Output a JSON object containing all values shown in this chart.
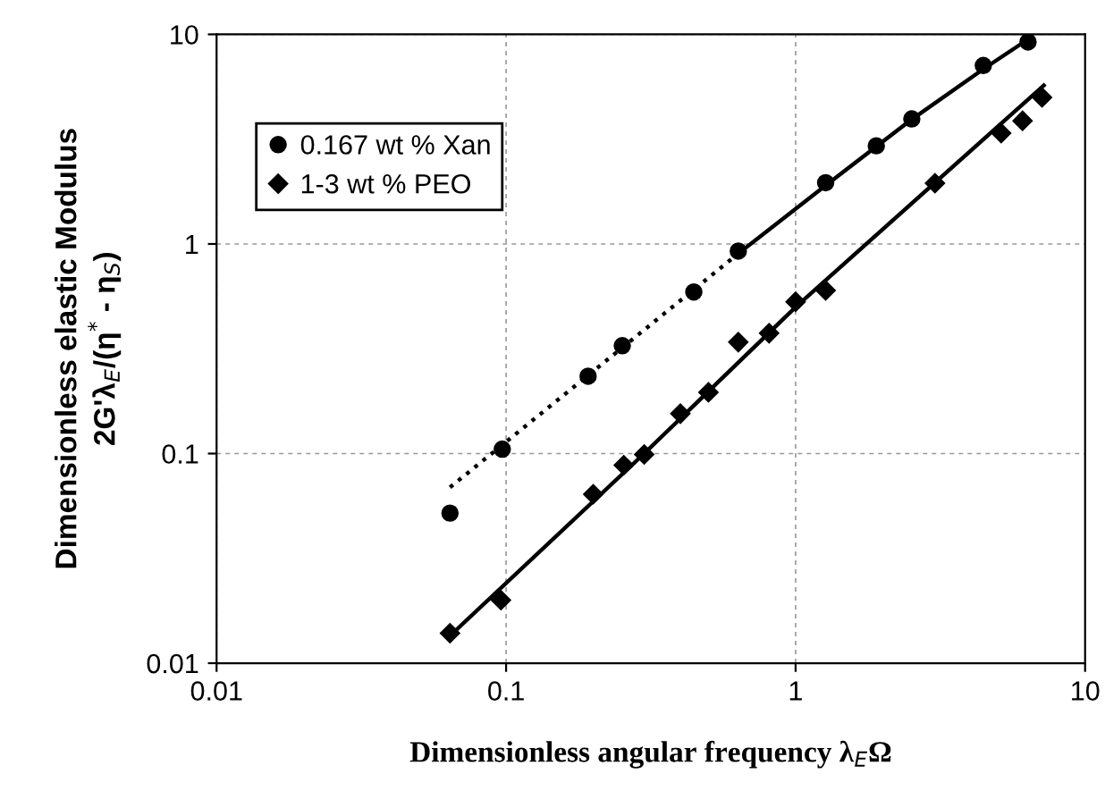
{
  "chart_data": {
    "type": "scatter",
    "xlabel": "Dimensionless angular frequency λ$_{E}$Ω",
    "ylabel": "Dimensionless elastic Modulus\n2G'λ$_{E}$/(η$^{*}$ - η$_{S}$)",
    "log": "xy",
    "xlim": [
      0.01,
      10
    ],
    "ylim": [
      0.01,
      10
    ],
    "xticks": [
      0.01,
      0.1,
      1,
      10
    ],
    "yticks": [
      0.01,
      0.1,
      1,
      10
    ],
    "grid": true,
    "legend": "top left",
    "series": [
      {
        "name": "0.167 wt % Xan",
        "color": "#000000",
        "marker": "circle",
        "x": [
          0.064,
          0.097,
          0.192,
          0.252,
          0.445,
          0.634,
          1.27,
          1.9,
          2.52,
          4.45,
          6.35
        ],
        "values": [
          0.052,
          0.105,
          0.234,
          0.327,
          0.59,
          0.925,
          1.96,
          2.94,
          3.95,
          7.1,
          9.2
        ]
      },
      {
        "name": "1-3 wt % PEO",
        "color": "#000000",
        "marker": "diamond",
        "x": [
          0.064,
          0.096,
          0.2,
          0.255,
          0.3,
          0.4,
          0.5,
          0.634,
          0.81,
          1.0,
          1.27,
          3.03,
          5.13,
          6.08,
          7.1
        ],
        "values": [
          0.0139,
          0.02,
          0.064,
          0.088,
          0.099,
          0.155,
          0.196,
          0.34,
          0.375,
          0.53,
          0.6,
          1.95,
          3.38,
          3.87,
          5.0
        ]
      },
      {
        "type": "line",
        "color": "#000000",
        "line_style": "dotted",
        "x": [
          0.064,
          0.634
        ],
        "values": [
          0.069,
          0.9
        ]
      },
      {
        "type": "line",
        "color": "#000000",
        "line_style": "solid",
        "x": [
          0.634,
          1.27,
          2.5,
          4.5,
          6.3
        ],
        "values": [
          0.9,
          1.9,
          3.9,
          6.9,
          9.4
        ]
      },
      {
        "type": "line",
        "color": "#000000",
        "line_style": "solid",
        "x": [
          0.064,
          0.3,
          1.0,
          7.2
        ],
        "values": [
          0.0135,
          0.1,
          0.5,
          5.7
        ]
      }
    ]
  }
}
